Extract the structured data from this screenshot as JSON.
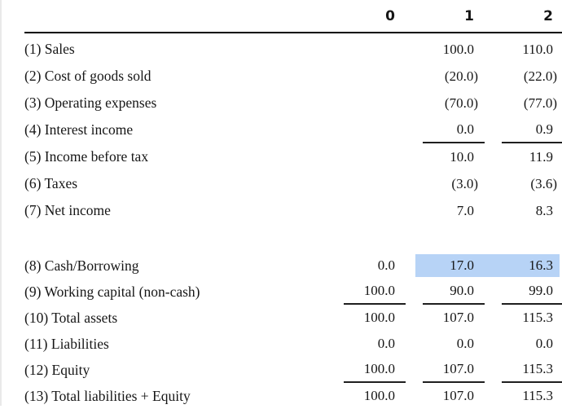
{
  "colors": {
    "selection_highlight": "#b7d3f6",
    "header_rule": "#000000",
    "sum_rule": "#1f1f1f",
    "text": "#161616"
  },
  "table": {
    "column_headers": [
      "0",
      "1",
      "2"
    ],
    "sections": [
      {
        "name": "income-statement",
        "rows": [
          {
            "label": "(1) Sales",
            "values": [
              "",
              "100.0",
              "110.0"
            ]
          },
          {
            "label": "(2) Cost of goods sold",
            "values": [
              "",
              "(20.0)",
              "(22.0)"
            ]
          },
          {
            "label": "(3) Operating expenses",
            "values": [
              "",
              "(70.0)",
              "(77.0)"
            ]
          },
          {
            "label": "(4) Interest income",
            "values": [
              "",
              "0.0",
              "0.9"
            ],
            "rule_under_cols": [
              1,
              2
            ]
          },
          {
            "label": "(5) Income before tax",
            "values": [
              "",
              "10.0",
              "11.9"
            ]
          },
          {
            "label": "(6) Taxes",
            "values": [
              "",
              "(3.0)",
              "(3.6)"
            ]
          },
          {
            "label": "(7) Net income",
            "values": [
              "",
              "7.0",
              "8.3"
            ]
          }
        ]
      },
      {
        "name": "balance-sheet",
        "rows": [
          {
            "label": "(8) Cash/Borrowing",
            "values": [
              "0.0",
              "17.0",
              "16.3"
            ],
            "selection_highlight_cols": [
              1,
              2
            ]
          },
          {
            "label": "(9) Working capital (non-cash)",
            "values": [
              "100.0",
              "90.0",
              "99.0"
            ],
            "rule_under_cols": [
              0,
              1,
              2
            ]
          },
          {
            "label": "(10) Total assets",
            "values": [
              "100.0",
              "107.0",
              "115.3"
            ]
          },
          {
            "label": "(11) Liabilities",
            "values": [
              "0.0",
              "0.0",
              "0.0"
            ]
          },
          {
            "label": "(12) Equity",
            "values": [
              "100.0",
              "107.0",
              "115.3"
            ],
            "rule_under_cols": [
              0,
              1,
              2
            ]
          },
          {
            "label": "(13) Total liabilities + Equity",
            "values": [
              "100.0",
              "107.0",
              "115.3"
            ]
          }
        ]
      }
    ]
  }
}
